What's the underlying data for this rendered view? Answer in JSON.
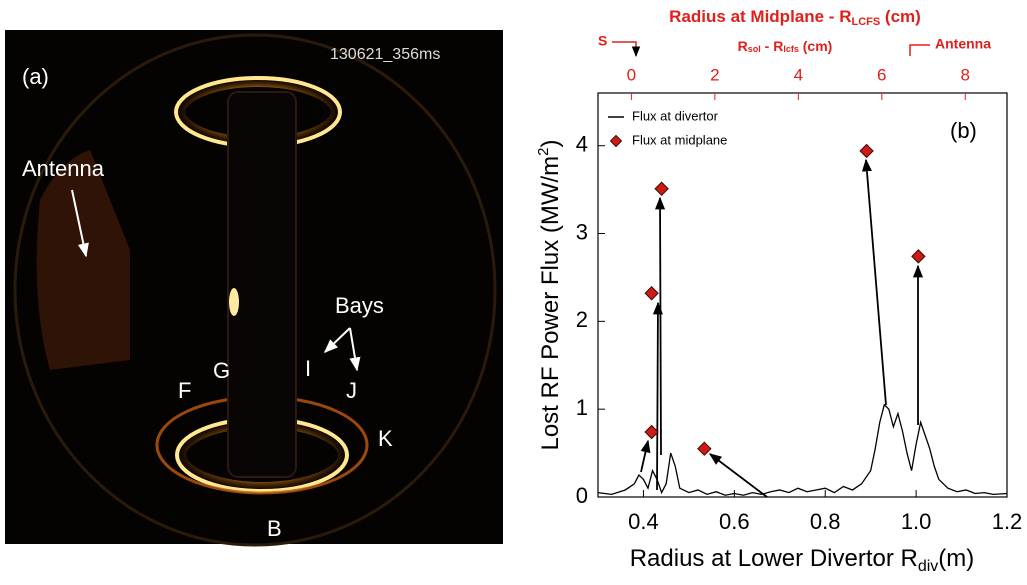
{
  "panel_a": {
    "label": "(a)",
    "timestamp": "130621_356ms",
    "antenna": "Antenna",
    "bays": "Bays",
    "ports": [
      "F",
      "G",
      "I",
      "J",
      "K",
      "B"
    ]
  },
  "chart_data": {
    "type": "line",
    "panel_label": "(b)",
    "xlabel": {
      "main": "Radius at Lower Divertor R",
      "sub": "div",
      "unit": "(m)"
    },
    "ylabel": {
      "main": "Lost RF Power Flux (MW/m",
      "sup": "2",
      "end": ")"
    },
    "x2label": {
      "main": "Radius at Midplane - R",
      "sub": "LCFS",
      "unit": " (cm)"
    },
    "x2sublabel": {
      "r1": "R",
      "s1": "sol",
      "mid": " - R",
      "s2": "lcfs",
      "unit": " (cm)"
    },
    "x2markers": {
      "separatrix": "S",
      "antenna": "Antenna"
    },
    "xlim": [
      0.3,
      1.2
    ],
    "xticks": [
      0.4,
      0.6,
      0.8,
      {
        "value": 1,
        "label": "1.0"
      },
      1.2
    ],
    "x2lim": [
      -0.8,
      9.0
    ],
    "x2ticks": [
      0,
      2,
      4,
      6,
      8
    ],
    "x2color": "#e0201c",
    "ylim": [
      0,
      4.6
    ],
    "yticks": [
      0,
      1,
      2,
      3,
      4
    ],
    "series": [
      {
        "name": "Flux at divertor",
        "type": "line",
        "color": "#000000",
        "x": [
          0.3,
          0.33,
          0.36,
          0.38,
          0.39,
          0.4,
          0.41,
          0.42,
          0.43,
          0.44,
          0.45,
          0.46,
          0.47,
          0.48,
          0.5,
          0.52,
          0.54,
          0.56,
          0.58,
          0.6,
          0.62,
          0.64,
          0.66,
          0.68,
          0.7,
          0.72,
          0.74,
          0.76,
          0.78,
          0.8,
          0.82,
          0.84,
          0.86,
          0.88,
          0.9,
          0.91,
          0.92,
          0.93,
          0.94,
          0.95,
          0.96,
          0.97,
          0.98,
          0.99,
          1.0,
          1.01,
          1.02,
          1.03,
          1.04,
          1.05,
          1.07,
          1.09,
          1.11,
          1.13,
          1.15,
          1.17,
          1.2
        ],
        "values": [
          0.05,
          0.03,
          0.08,
          0.15,
          0.25,
          0.2,
          0.1,
          0.3,
          0.2,
          0.05,
          0.15,
          0.5,
          0.35,
          0.1,
          0.05,
          0.08,
          0.03,
          0.06,
          0.02,
          0.04,
          0.02,
          0.05,
          0.03,
          0.06,
          0.08,
          0.05,
          0.1,
          0.06,
          0.08,
          0.1,
          0.05,
          0.12,
          0.08,
          0.15,
          0.3,
          0.55,
          0.85,
          1.05,
          1.0,
          0.8,
          0.95,
          0.75,
          0.5,
          0.3,
          0.6,
          0.85,
          0.7,
          0.55,
          0.35,
          0.2,
          0.1,
          0.06,
          0.08,
          0.04,
          0.05,
          0.03,
          0.04
        ]
      },
      {
        "name": "Flux at midplane",
        "type": "scatter",
        "color": "#d01a14",
        "x": [
          0.418,
          0.418,
          0.44,
          0.534,
          0.891,
          1.005
        ],
        "values": [
          0.74,
          2.32,
          3.51,
          0.55,
          3.94,
          2.74
        ]
      }
    ]
  }
}
